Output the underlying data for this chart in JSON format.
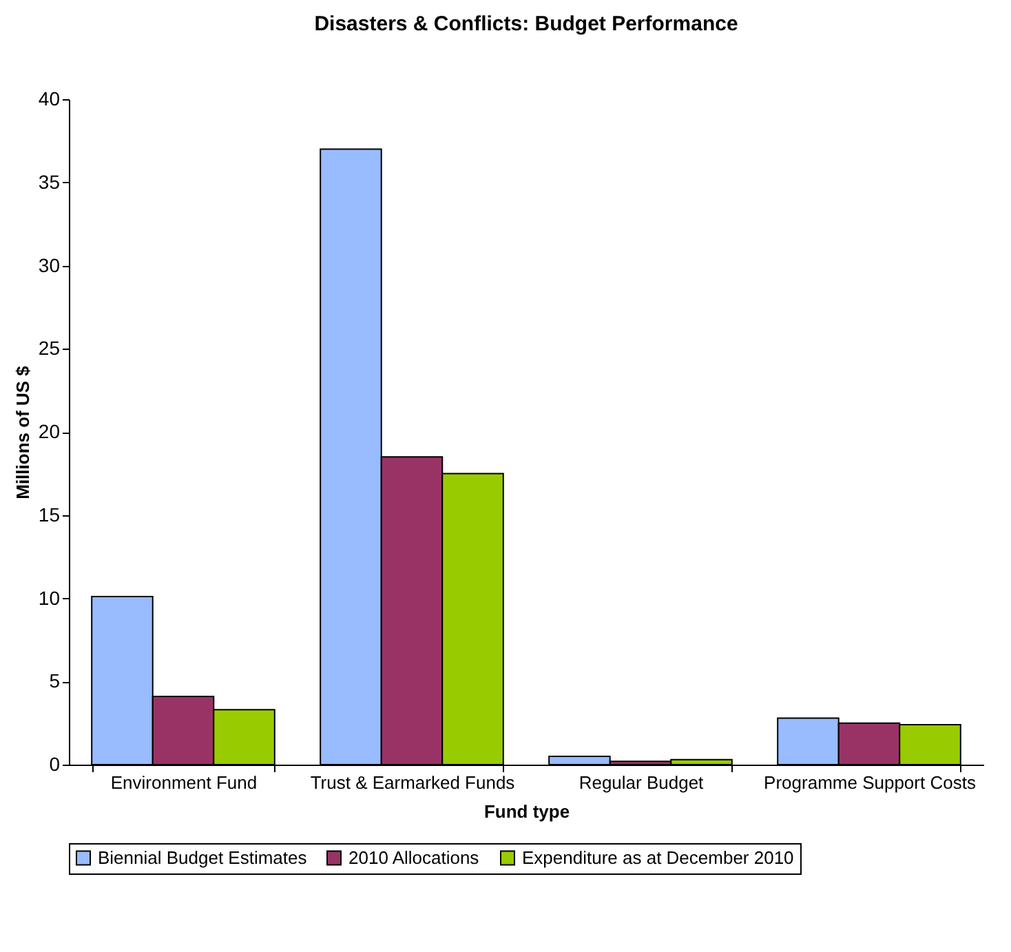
{
  "chart_data": {
    "type": "bar",
    "title": "Disasters & Conflicts: Budget Performance",
    "xlabel": "Fund type",
    "ylabel": "Millions of US $",
    "categories": [
      "Environment Fund",
      "Trust & Earmarked Funds",
      "Regular Budget",
      "Programme Support Costs"
    ],
    "series": [
      {
        "name": "Biennial Budget Estimates",
        "color": "#99bbff",
        "values": [
          10.1,
          37,
          0.5,
          2.8
        ]
      },
      {
        "name": "2010 Allocations",
        "color": "#993366",
        "values": [
          4.1,
          18.5,
          0.2,
          2.5
        ]
      },
      {
        "name": "Expenditure as at December 2010",
        "color": "#99cc00",
        "values": [
          3.3,
          17.5,
          0.3,
          2.4
        ]
      }
    ],
    "ylim": [
      0,
      40
    ],
    "yticks": [
      0,
      5,
      10,
      15,
      20,
      25,
      30,
      35,
      40
    ],
    "grid": false,
    "legend": "bottom"
  }
}
